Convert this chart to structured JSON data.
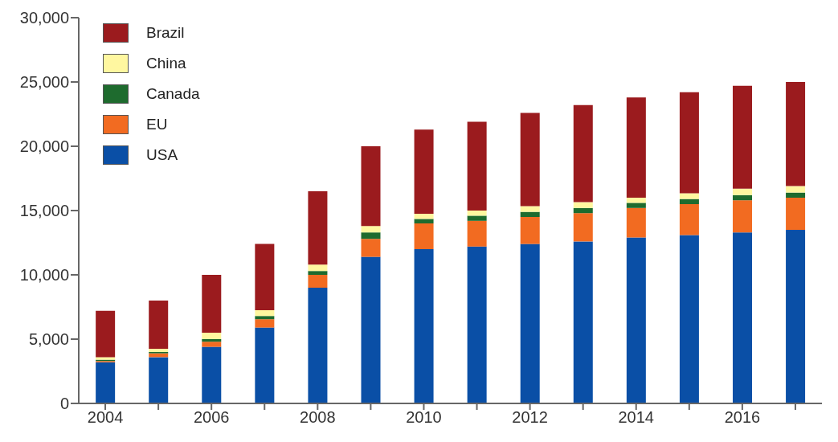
{
  "chart_data": {
    "type": "bar",
    "stacked": true,
    "categories": [
      "2004",
      null,
      "2006",
      null,
      "2008",
      null,
      "2010",
      null,
      "2012",
      null,
      "2014",
      null,
      "2016",
      null
    ],
    "series": [
      {
        "name": "USA",
        "color": "#0a4fa6",
        "values": [
          3200,
          3600,
          4400,
          5900,
          9000,
          11400,
          12000,
          12200,
          12400,
          12600,
          12900,
          13100,
          13300,
          13500
        ]
      },
      {
        "name": "EU",
        "color": "#f26b21",
        "values": [
          100,
          300,
          400,
          650,
          1000,
          1400,
          2000,
          2000,
          2100,
          2200,
          2300,
          2400,
          2500,
          2500
        ]
      },
      {
        "name": "Canada",
        "color": "#1e6b2e",
        "values": [
          100,
          100,
          200,
          250,
          300,
          500,
          350,
          400,
          400,
          400,
          400,
          400,
          400,
          400
        ]
      },
      {
        "name": "China",
        "color": "#fff7a0",
        "values": [
          200,
          250,
          500,
          450,
          500,
          500,
          400,
          400,
          450,
          450,
          400,
          450,
          500,
          500
        ]
      },
      {
        "name": "Brazil",
        "color": "#9b1b1e",
        "values": [
          3600,
          3750,
          4500,
          5150,
          5700,
          6200,
          6550,
          6900,
          7250,
          7550,
          7800,
          7850,
          8000,
          8100
        ]
      }
    ],
    "ylim": [
      0,
      30000
    ],
    "yticks": [
      {
        "value": 0,
        "label": "0"
      },
      {
        "value": 5000,
        "label": "5,000"
      },
      {
        "value": 10000,
        "label": "10,000"
      },
      {
        "value": 15000,
        "label": "15,000"
      },
      {
        "value": 20000,
        "label": "20,000"
      },
      {
        "value": 25000,
        "label": "25,000"
      },
      {
        "value": 30000,
        "label": "30,000"
      }
    ],
    "grid": false,
    "legend": "top left"
  }
}
